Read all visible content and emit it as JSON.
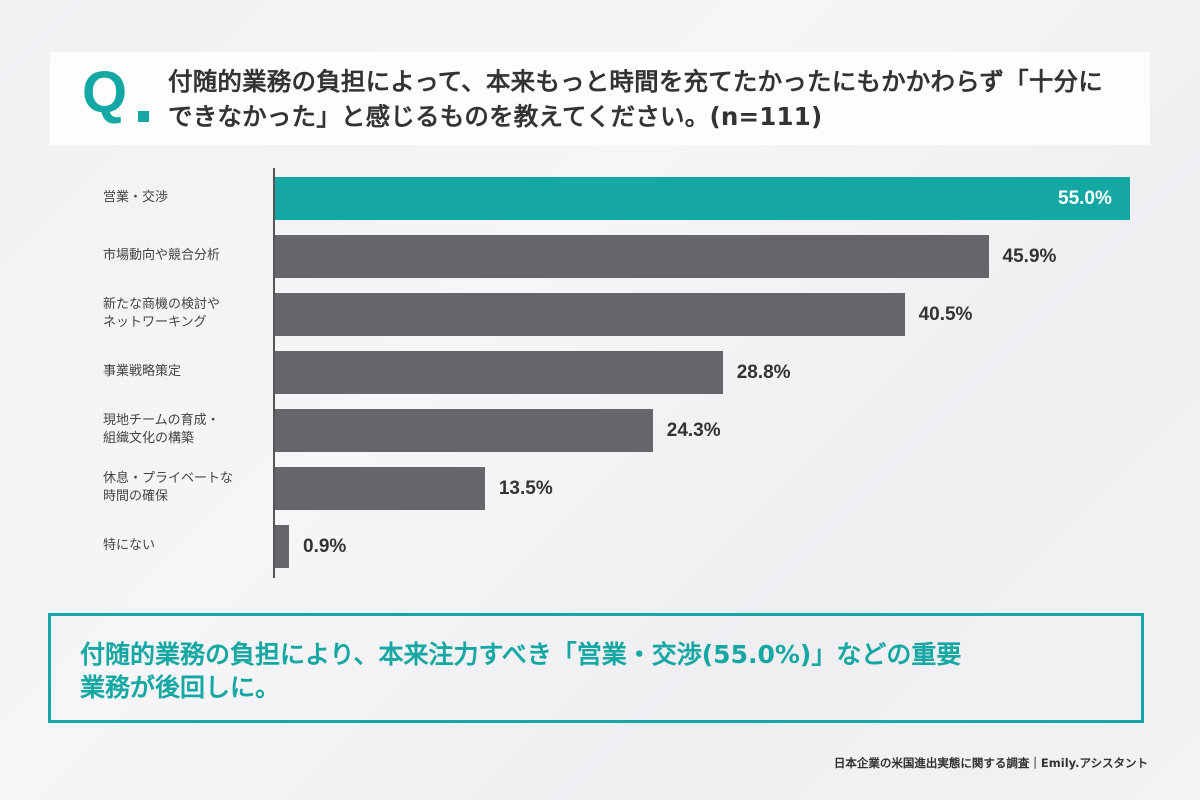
{
  "question": {
    "marker": "Q",
    "text_line1": "付随的業務の負担によって、本来もっと時間を充てたかったにもかかわらず「十分に",
    "text_line2": "できなかった」と感じるものを教えてください。(n=111)"
  },
  "chart_data": {
    "type": "bar",
    "orientation": "horizontal",
    "title": "付随的業務の負担によって、本来もっと時間を充てたかったにもかかわらず「十分にできなかった」と感じるものを教えてください。(n=111)",
    "categories": [
      "営業・交渉",
      "市場動向や競合分析",
      "新たな商機の検討やネットワーキング",
      "事業戦略策定",
      "現地チームの育成・組織文化の構築",
      "休息・プライベートな時間の確保",
      "特にない"
    ],
    "values": [
      55.0,
      45.9,
      40.5,
      28.8,
      24.3,
      13.5,
      0.9
    ],
    "unit": "%",
    "xlabel": "",
    "ylabel": "",
    "grid": false,
    "highlight_index": 0,
    "colors": {
      "highlight": "#14a7a3",
      "default": "#67656a"
    }
  },
  "bars": [
    {
      "label_l1": "営業・交渉",
      "label_l2": "",
      "value": 55.0,
      "display": "55.0%"
    },
    {
      "label_l1": "市場動向や競合分析",
      "label_l2": "",
      "value": 45.9,
      "display": "45.9%"
    },
    {
      "label_l1": "新たな商機の検討や",
      "label_l2": "ネットワーキング",
      "value": 40.5,
      "display": "40.5%"
    },
    {
      "label_l1": "事業戦略策定",
      "label_l2": "",
      "value": 28.8,
      "display": "28.8%"
    },
    {
      "label_l1": "現地チームの育成・",
      "label_l2": "組織文化の構築",
      "value": 24.3,
      "display": "24.3%"
    },
    {
      "label_l1": "休息・プライベートな",
      "label_l2": "時間の確保",
      "value": 13.5,
      "display": "13.5%"
    },
    {
      "label_l1": "特にない",
      "label_l2": "",
      "value": 0.9,
      "display": "0.9%"
    }
  ],
  "summary": {
    "line1": "付随的業務の負担により、本来注力すべき「営業・交渉(55.0%)」などの重要",
    "line2": "業務が後回しに。"
  },
  "footer": {
    "source": "日本企業の米国進出実態に関する調査｜Emily.アシスタント"
  }
}
